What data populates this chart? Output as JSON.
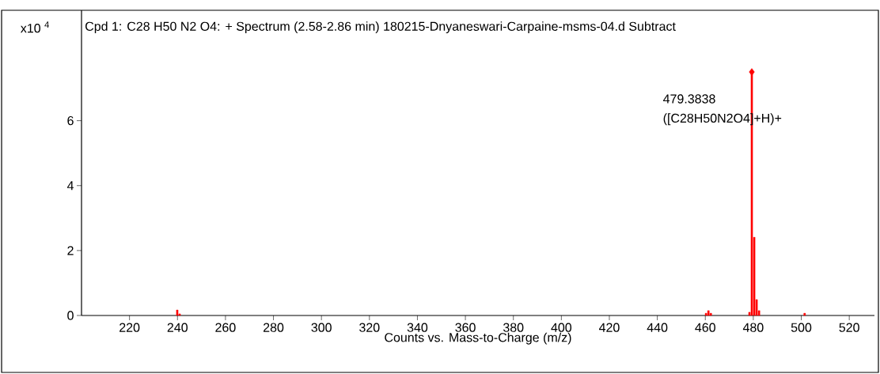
{
  "chart_data": {
    "type": "bar",
    "title": "Cpd 1: C28 H50 N2 O4: + Spectrum (2.58-2.86 min) 180215-Dnyaneswari-Carpaine-msms-04.d  Subtract",
    "ylabel": "x10 $^{4}$",
    "xlabel": "Counts vs. Mass-to-Charge (m/z)",
    "x": [
      239.9,
      240.9,
      460.3,
      461.3,
      462.3,
      478.4,
      479.3838,
      480.39,
      481.39,
      482.4,
      501.4
    ],
    "series": [
      {
        "color": "#ff0000",
        "values": [
          0.17,
          0.05,
          0.07,
          0.15,
          0.07,
          0.1,
          7.5,
          2.41,
          0.49,
          0.15,
          0.07
        ]
      },
      {
        "type": "scatter",
        "color": "#ff0000",
        "marker": "diamond",
        "x": [
          479.3838
        ],
        "values": [
          7.5
        ]
      }
    ],
    "xlim": [
      200,
      530.5
    ],
    "ylim": [
      0,
      9.4
    ],
    "xticks": [
      220,
      240,
      260,
      280,
      300,
      320,
      340,
      360,
      380,
      400,
      420,
      440,
      460,
      480,
      500,
      520
    ],
    "yticks": [
      0,
      2,
      4,
      6
    ],
    "annotations": [
      "479.3838",
      "([C28H50N2O4]+H)+"
    ]
  }
}
